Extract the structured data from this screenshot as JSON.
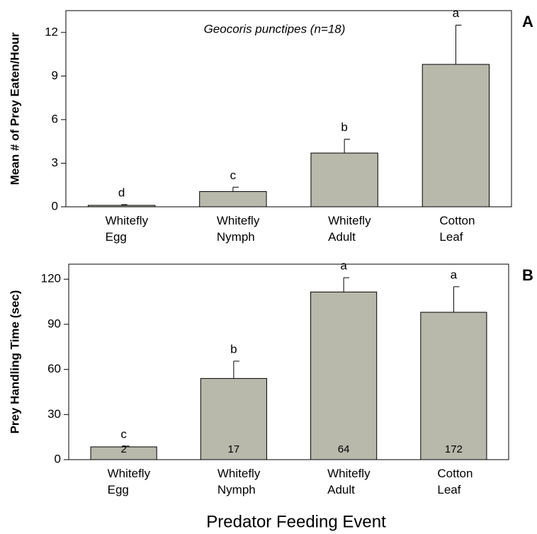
{
  "chart_data": [
    {
      "type": "bar",
      "panel": "A",
      "ylabel": "Mean # of Prey Eaten/Hour",
      "annotation": "Geocoris punctipes (n=18)",
      "categories": [
        "Whitefly Egg",
        "Whitefly Nymph",
        "Whitefly Adult",
        "Cotton Leaf"
      ],
      "values": [
        0.1,
        1.05,
        3.7,
        9.8
      ],
      "errors": [
        0.05,
        0.3,
        0.95,
        2.7
      ],
      "group_letters": [
        "d",
        "c",
        "b",
        "a"
      ],
      "color": "#b8b8ab",
      "ylim": [
        0,
        13.5
      ],
      "yticks": [
        0,
        3,
        6,
        9,
        12
      ]
    },
    {
      "type": "bar",
      "panel": "B",
      "ylabel": "Prey Handling Time (sec)",
      "xlabel": "Predator Feeding Event",
      "categories": [
        "Whitefly Egg",
        "Whitefly Nymph",
        "Whitefly Adult",
        "Cotton Leaf"
      ],
      "values": [
        8.5,
        54,
        111.5,
        98
      ],
      "errors": [
        0.5,
        11.5,
        9.5,
        17
      ],
      "group_letters": [
        "c",
        "b",
        "a",
        "a"
      ],
      "bar_labels": [
        2,
        17,
        64,
        172
      ],
      "color": "#b8b8ab",
      "ylim": [
        0,
        130
      ],
      "yticks": [
        0,
        30,
        60,
        90,
        120
      ]
    }
  ]
}
